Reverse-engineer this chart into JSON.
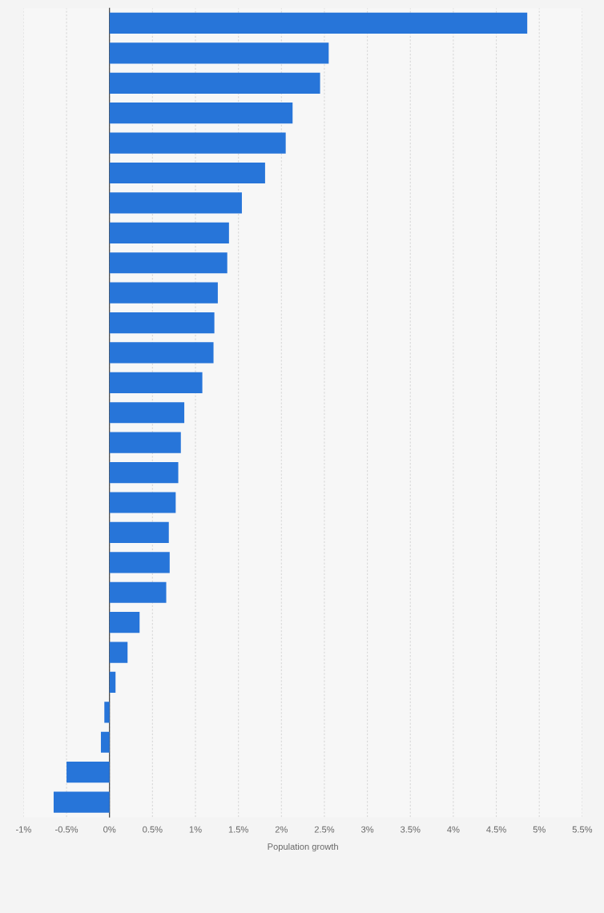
{
  "chart_data": {
    "type": "bar",
    "orientation": "horizontal",
    "xlabel": "Population growth",
    "categories": [
      null,
      null,
      null,
      null,
      null,
      null,
      null,
      null,
      null,
      null,
      null,
      null,
      null,
      null,
      null,
      null,
      null,
      null,
      null,
      null,
      null,
      null,
      null,
      null,
      null,
      null,
      null
    ],
    "series": [
      {
        "color": "#2775d9",
        "values": [
          4.86,
          2.55,
          2.45,
          2.13,
          2.05,
          1.81,
          1.54,
          1.39,
          1.37,
          1.26,
          1.22,
          1.21,
          1.08,
          0.87,
          0.83,
          0.8,
          0.77,
          0.69,
          0.7,
          0.66,
          0.35,
          0.21,
          0.07,
          -0.06,
          -0.1,
          -0.5,
          -0.65
        ]
      }
    ],
    "xlim": [
      -1,
      5.5
    ],
    "xticks": [
      {
        "value": -1,
        "label": "-1%"
      },
      {
        "value": -0.5,
        "label": "-0.5%"
      },
      {
        "value": 0,
        "label": "0%"
      },
      {
        "value": 0.5,
        "label": "0.5%"
      },
      {
        "value": 1,
        "label": "1%"
      },
      {
        "value": 1.5,
        "label": "1.5%"
      },
      {
        "value": 2,
        "label": "2%"
      },
      {
        "value": 2.5,
        "label": "2.5%"
      },
      {
        "value": 3,
        "label": "3%"
      },
      {
        "value": 3.5,
        "label": "3.5%"
      },
      {
        "value": 4,
        "label": "4%"
      },
      {
        "value": 4.5,
        "label": "4.5%"
      },
      {
        "value": 5,
        "label": "5%"
      },
      {
        "value": 5.5,
        "label": "5.5%"
      }
    ],
    "grid": "x",
    "legend": false
  }
}
